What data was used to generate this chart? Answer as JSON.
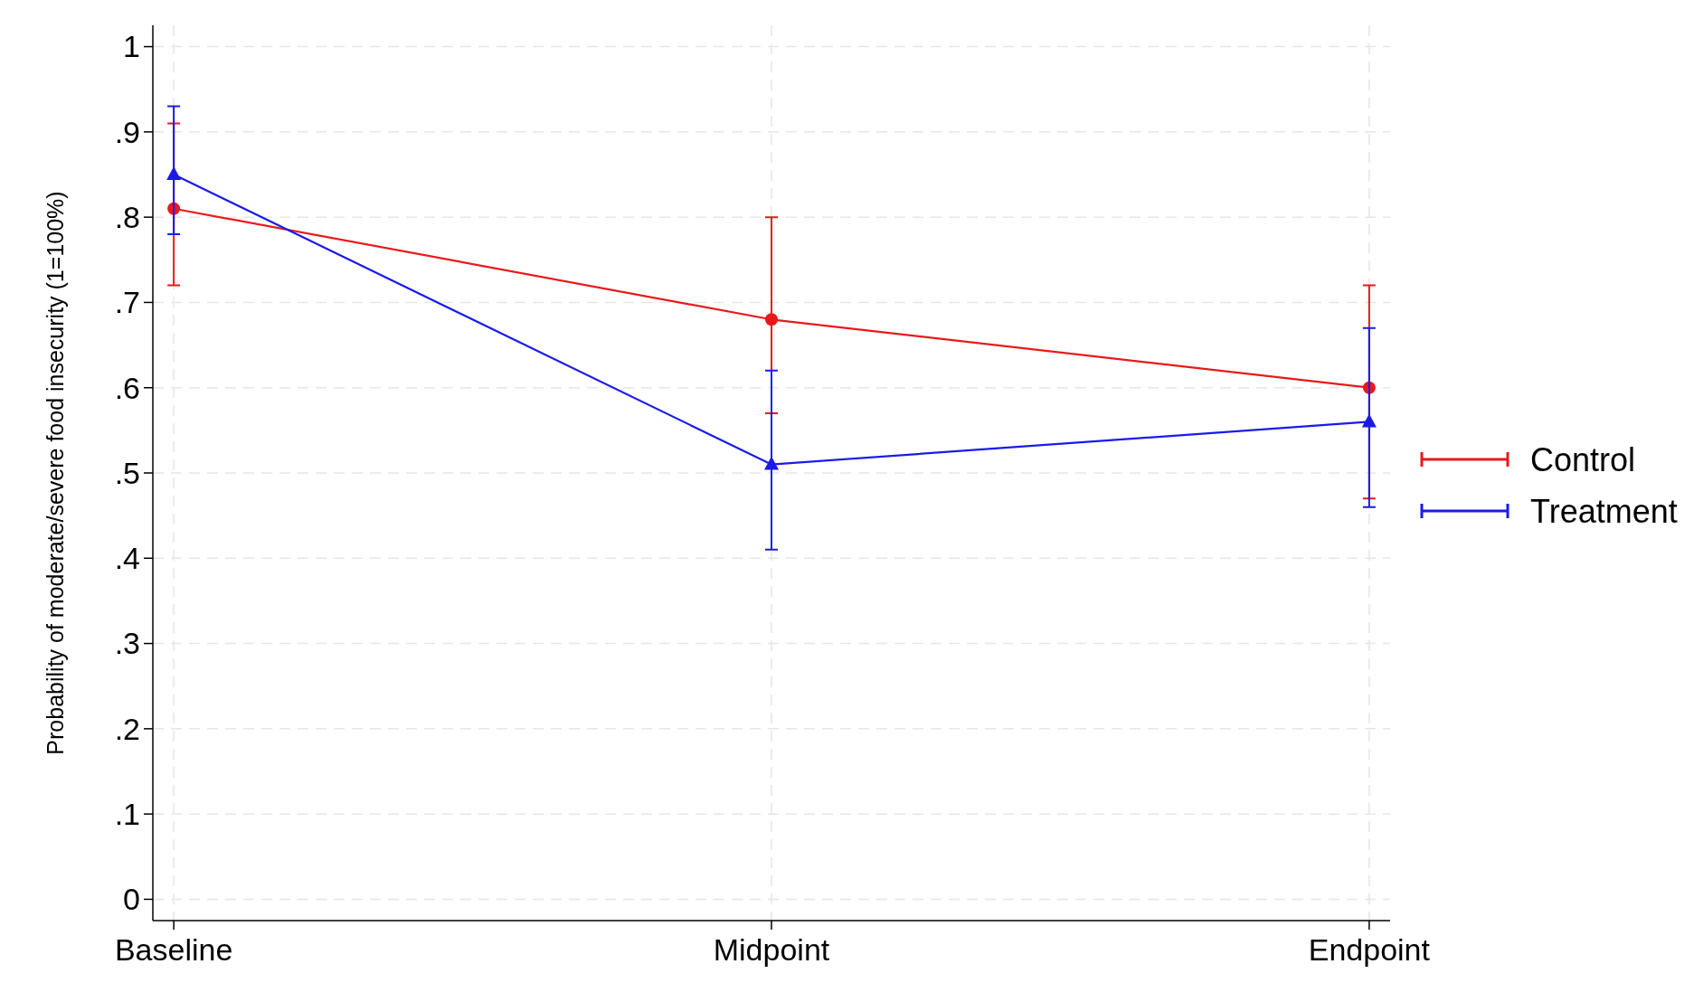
{
  "chart_data": {
    "type": "line",
    "ylabel": "Probability of moderate/severe food insecurity (1=100%)",
    "categories": [
      "Baseline",
      "Midpoint",
      "Endpoint"
    ],
    "series": [
      {
        "name": "Control",
        "color": "#e8191b",
        "values": [
          0.81,
          0.68,
          0.6
        ],
        "errors": [
          [
            0.72,
            0.91
          ],
          [
            0.57,
            0.8
          ],
          [
            0.47,
            0.72
          ]
        ],
        "marker": "circle"
      },
      {
        "name": "Treatment",
        "color": "#1a1aeb",
        "values": [
          0.85,
          0.51,
          0.56
        ],
        "errors": [
          [
            0.78,
            0.93
          ],
          [
            0.41,
            0.62
          ],
          [
            0.46,
            0.67
          ]
        ],
        "marker": "triangle"
      }
    ],
    "ylim": [
      -0.025,
      1.025
    ],
    "yticks": [
      0,
      {
        "value": 0.1,
        "label": ".1"
      },
      {
        "value": 0.2,
        "label": ".2"
      },
      {
        "value": 0.3,
        "label": ".3"
      },
      {
        "value": 0.4,
        "label": ".4"
      },
      {
        "value": 0.5,
        "label": ".5"
      },
      {
        "value": 0.6,
        "label": ".6"
      },
      {
        "value": 0.7,
        "label": ".7"
      },
      {
        "value": 0.8,
        "label": ".8"
      },
      {
        "value": 0.9,
        "label": ".9"
      },
      1
    ],
    "grid": true,
    "legend": "right",
    "line_style": "solid"
  }
}
